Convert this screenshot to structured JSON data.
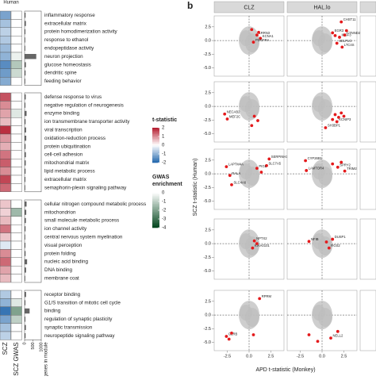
{
  "panel_a": {
    "human_label": "Human",
    "col_labels": [
      "SCZ",
      "SCZ GWAS"
    ],
    "bar_label": "# genes in module",
    "bar_lim": [
      0,
      1000
    ],
    "bar_ticks": [
      0,
      500,
      1000
    ],
    "groups": [
      [
        {
          "term": "inflammatory response",
          "t": -1.2,
          "gwas": 0,
          "genes": 60
        },
        {
          "term": "extracellular matrix",
          "t": -0.8,
          "gwas": 0,
          "genes": 80
        },
        {
          "term": "protein homodimerization activity",
          "t": -0.6,
          "gwas": 0,
          "genes": 50
        },
        {
          "term": "response to ethanol",
          "t": -0.7,
          "gwas": 0,
          "genes": 40
        },
        {
          "term": "endopeptidase activity",
          "t": -0.9,
          "gwas": 0,
          "genes": 40
        },
        {
          "term": "neuron projection",
          "t": -1.0,
          "gwas": -0.3,
          "genes": 700
        },
        {
          "term": "glucose homeostasis",
          "t": -1.5,
          "gwas": -1.2,
          "genes": 80
        },
        {
          "term": "dendritic spine",
          "t": -1.3,
          "gwas": -0.8,
          "genes": 60
        },
        {
          "term": "feeding behavior",
          "t": -1.1,
          "gwas": 0,
          "genes": 40
        }
      ],
      [
        {
          "term": "defense response to virus",
          "t": 1.5,
          "gwas": 0,
          "genes": 70
        },
        {
          "term": "negative regulation of neurogenesis",
          "t": 1.0,
          "gwas": 0,
          "genes": 50
        },
        {
          "term": "enzyme binding",
          "t": 0.8,
          "gwas": -0.5,
          "genes": 120
        },
        {
          "term": "ion transmembrane transporter activity",
          "t": 0.6,
          "gwas": 0,
          "genes": 60
        },
        {
          "term": "viral transcription",
          "t": 1.8,
          "gwas": 0,
          "genes": 90
        },
        {
          "term": "oxidation-reduction process",
          "t": 0.9,
          "gwas": 0,
          "genes": 100
        },
        {
          "term": "protein ubiquitination",
          "t": 0.7,
          "gwas": 0,
          "genes": 60
        },
        {
          "term": "cell-cell adhesion",
          "t": 1.2,
          "gwas": 0,
          "genes": 80
        },
        {
          "term": "mitochondrial matrix",
          "t": 1.4,
          "gwas": 0,
          "genes": 70
        },
        {
          "term": "lipid metabolic process",
          "t": 1.0,
          "gwas": 0,
          "genes": 60
        },
        {
          "term": "extracellular matrix",
          "t": 1.6,
          "gwas": 0,
          "genes": 50
        },
        {
          "term": "semaphorin-plexin signaling pathway",
          "t": 1.3,
          "gwas": 0,
          "genes": 40
        }
      ],
      [
        {
          "term": "cellular nitrogen compound metabolic process",
          "t": 0.5,
          "gwas": 0,
          "genes": 120
        },
        {
          "term": "mitochondrion",
          "t": 0.4,
          "gwas": -1.5,
          "genes": 100
        },
        {
          "term": "small molecule metabolic process",
          "t": 0.6,
          "gwas": 0,
          "genes": 80
        },
        {
          "term": "ion channel activity",
          "t": 1.2,
          "gwas": 0,
          "genes": 60
        },
        {
          "term": "central nervous system myelination",
          "t": 0.5,
          "gwas": 0,
          "genes": 40
        },
        {
          "term": "visual perception",
          "t": -0.3,
          "gwas": 0,
          "genes": 50
        },
        {
          "term": "protein folding",
          "t": 1.0,
          "gwas": 0,
          "genes": 60
        },
        {
          "term": "nucleic acid binding",
          "t": 1.3,
          "gwas": 0,
          "genes": 150
        },
        {
          "term": "DNA binding",
          "t": 0.8,
          "gwas": 0,
          "genes": 90
        },
        {
          "term": "membrane coat",
          "t": 0.6,
          "gwas": 0,
          "genes": 40
        }
      ],
      [
        {
          "term": "receptor binding",
          "t": -0.7,
          "gwas": 0,
          "genes": 90
        },
        {
          "term": "G1/S transition of mitotic cell cycle",
          "t": -1.0,
          "gwas": -0.5,
          "genes": 50
        },
        {
          "term": "binding",
          "t": -1.8,
          "gwas": -2,
          "genes": 300
        },
        {
          "term": "regulation of synaptic plasticity",
          "t": -1.2,
          "gwas": -1,
          "genes": 50
        },
        {
          "term": "synaptic transmission",
          "t": -0.8,
          "gwas": 0,
          "genes": 80
        },
        {
          "term": "neuropeptide signaling pathway",
          "t": -0.6,
          "gwas": 0,
          "genes": 60
        }
      ]
    ],
    "t_legend": {
      "title": "t-statistic",
      "ticks": [
        2,
        1,
        0,
        -1,
        -2
      ]
    },
    "gwas_legend": {
      "title": [
        "GWAS",
        "enrichment"
      ],
      "ticks": [
        0,
        -1,
        -2,
        -3,
        -4
      ]
    }
  },
  "panel_b": {
    "label": "b",
    "facets": [
      "CLZ",
      "HAL.lo"
    ],
    "xlabel": "APD t-statistic (Monkey)",
    "ylabel": "SCZ t-statistic (Human)",
    "xlim": [
      -4,
      4
    ],
    "ylim": [
      -6.5,
      4.5
    ],
    "xticks": [
      {
        "value": -2.5,
        "label": "-2.5"
      },
      {
        "value": 0,
        "label": "0.0"
      },
      {
        "value": 2.5,
        "label": "2.5"
      }
    ],
    "yticks": [
      {
        "value": 2.5,
        "label": "2.5"
      },
      {
        "value": 0,
        "label": "0.0"
      },
      {
        "value": -2.5,
        "label": "-2.5"
      },
      {
        "value": -5,
        "label": "-5.0"
      }
    ],
    "panels": [
      [
        [
          {
            "x": 0.9,
            "y": 1.0,
            "label": "LRRN3"
          },
          {
            "x": 1.3,
            "y": 0.4,
            "label": "KCNA1"
          },
          {
            "x": 0.5,
            "y": -0.3,
            "label": "PDGFRA"
          },
          {
            "x": 1.1,
            "y": 1.5
          },
          {
            "x": 0.3,
            "y": 2.0
          }
        ],
        [
          {
            "x": 2.2,
            "y": 3.4,
            "label": "CHST11"
          },
          {
            "x": 1.2,
            "y": 1.4,
            "label": "EGR3"
          },
          {
            "x": 2.0,
            "y": 0.6,
            "label": "IGSF3"
          },
          {
            "x": 2.6,
            "y": 1.0,
            "label": "CTNND2"
          },
          {
            "x": 1.7,
            "y": -0.5,
            "label": "SELPLG"
          },
          {
            "x": 2.3,
            "y": -1.2,
            "label": "LTC4S"
          },
          {
            "x": 1.5,
            "y": 0.9
          },
          {
            "x": 2.8,
            "y": 1.8
          }
        ]
      ],
      [
        [
          {
            "x": -2.8,
            "y": -1.4,
            "label": "NECAB2"
          },
          {
            "x": -2.5,
            "y": -2.3,
            "label": "MEF2C"
          },
          {
            "x": 0.6,
            "y": -1.8
          },
          {
            "x": 1.0,
            "y": -2.6
          },
          {
            "x": 0.3,
            "y": -3.5
          }
        ],
        [
          {
            "x": 1.5,
            "y": -1.5
          },
          {
            "x": 1.9,
            "y": -2.0
          },
          {
            "x": 2.2,
            "y": -1.2
          },
          {
            "x": 1.2,
            "y": -2.4
          },
          {
            "x": 2.5,
            "y": -1.8
          },
          {
            "x": 1.7,
            "y": -2.8,
            "label": "KCNIP3"
          },
          {
            "x": 0.4,
            "y": -3.9,
            "label": "SH3BP1"
          }
        ]
      ],
      [
        [
          {
            "x": 2.3,
            "y": 2.7,
            "label": "SERPINH1"
          },
          {
            "x": 2.0,
            "y": 1.5,
            "label": "SLC7A5"
          },
          {
            "x": 0.9,
            "y": 1.0,
            "label": "PIGL"
          },
          {
            "x": -2.6,
            "y": 1.3,
            "label": "LAPTM4A"
          },
          {
            "x": -2.2,
            "y": -0.3,
            "label": "RALA"
          },
          {
            "x": -2.0,
            "y": -2.0,
            "label": "SLC4A6"
          },
          {
            "x": 1.4,
            "y": 0.3
          }
        ],
        [
          {
            "x": -1.9,
            "y": 2.4,
            "label": "CYP26B1"
          },
          {
            "x": 1.8,
            "y": 1.2,
            "label": "SPRY2"
          },
          {
            "x": -1.8,
            "y": 0.6,
            "label": "LAMTOR4"
          },
          {
            "x": 2.6,
            "y": 0.5,
            "label": "TRIM2"
          },
          {
            "x": 1.2,
            "y": 1.8
          },
          {
            "x": 2.2,
            "y": 2.1
          }
        ]
      ],
      [
        [
          {
            "x": 0.6,
            "y": 0.5,
            "label": "NPTX2"
          },
          {
            "x": 0.4,
            "y": -0.8,
            "label": "KIAA0101"
          },
          {
            "x": 0.9,
            "y": 0.0
          }
        ],
        [
          {
            "x": -1.5,
            "y": 0.4,
            "label": "NFIB"
          },
          {
            "x": 1.2,
            "y": 0.8,
            "label": "DUSP1"
          },
          {
            "x": 0.8,
            "y": -0.8,
            "label": "RGS2"
          },
          {
            "x": 0.5,
            "y": 0.3
          }
        ]
      ],
      [
        [
          {
            "x": 1.2,
            "y": 3.0,
            "label": "RPRM"
          },
          {
            "x": -2.6,
            "y": -3.9,
            "label": "GLRB"
          },
          {
            "x": -2.0,
            "y": -3.3
          },
          {
            "x": -2.3,
            "y": -4.4
          },
          {
            "x": 0.5,
            "y": -3.6
          }
        ],
        [
          {
            "x": 1.0,
            "y": -4.2,
            "label": "NELL2"
          },
          {
            "x": -1.5,
            "y": -3.6
          },
          {
            "x": -0.5,
            "y": -4.8
          },
          {
            "x": 1.8,
            "y": -3.0
          }
        ]
      ]
    ]
  }
}
